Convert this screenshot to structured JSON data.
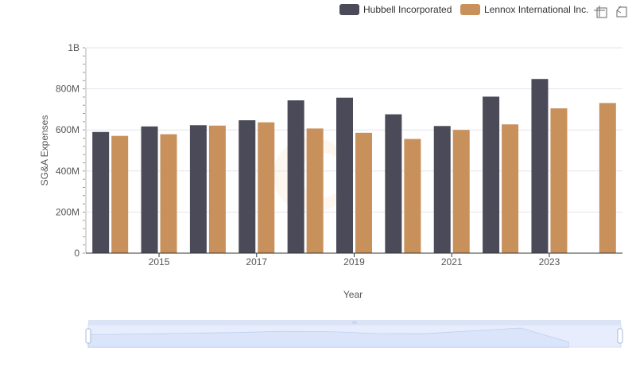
{
  "chart_data": {
    "type": "bar",
    "xlabel": "Year",
    "ylabel": "SG&A Expenses",
    "categories": [
      "2014",
      "2015",
      "2016",
      "2017",
      "2018",
      "2019",
      "2020",
      "2021",
      "2022",
      "2023",
      "2024"
    ],
    "x_tick_labels": [
      "2015",
      "2017",
      "2019",
      "2021",
      "2023"
    ],
    "y_tick_labels": [
      "0",
      "200M",
      "400M",
      "600M",
      "800M",
      "1B"
    ],
    "ylim": [
      0,
      1000000000
    ],
    "grid": true,
    "legend_position": "top-right",
    "series": [
      {
        "name": "Hubbell Incorporated",
        "color": "#4a4a58",
        "values": [
          590000000,
          617000000,
          623000000,
          647000000,
          744000000,
          757000000,
          676000000,
          619000000,
          762000000,
          848000000,
          null
        ]
      },
      {
        "name": "Lennox International Inc.",
        "color": "#c8915c",
        "values": [
          571000000,
          579000000,
          621000000,
          637000000,
          607000000,
          586000000,
          556000000,
          600000000,
          627000000,
          705000000,
          731000000
        ]
      }
    ]
  },
  "toolbox": {
    "zoom_icon": "zoom-crosshair-icon",
    "restore_icon": "restore-icon"
  },
  "datazoom": {
    "handle_color": "#ffffff",
    "fill_color": "#e0e8fb"
  }
}
